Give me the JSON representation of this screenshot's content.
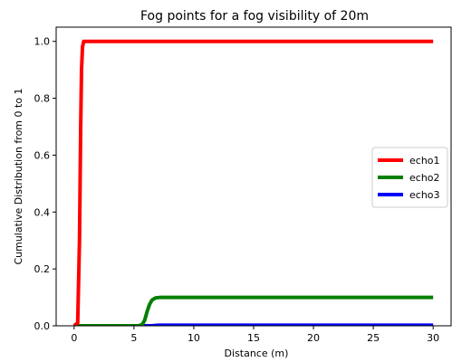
{
  "chart_data": {
    "type": "line",
    "title": "Fog points for a fog visibility of 20m",
    "xlabel": "Distance (m)",
    "ylabel": "Cumulative Distribution from 0 to 1",
    "xlim": [
      -1.5,
      31.5
    ],
    "ylim": [
      0.0,
      1.05
    ],
    "xticks": [
      0,
      5,
      10,
      15,
      20,
      25,
      30
    ],
    "xtick_labels": [
      "0",
      "5",
      "10",
      "15",
      "20",
      "25",
      "30"
    ],
    "yticks": [
      0.0,
      0.2,
      0.4,
      0.6,
      0.8,
      1.0
    ],
    "ytick_labels": [
      "0.0",
      "0.2",
      "0.4",
      "0.6",
      "0.8",
      "1.0"
    ],
    "grid": false,
    "legend_position": "center-right",
    "series": [
      {
        "name": "echo1",
        "color": "#ff0000",
        "x": [
          0,
          0.3,
          0.45,
          0.55,
          0.62,
          0.7,
          0.8,
          1.0,
          30
        ],
        "y": [
          0,
          0.01,
          0.3,
          0.7,
          0.9,
          0.98,
          1.0,
          1.0,
          1.0
        ]
      },
      {
        "name": "echo2",
        "color": "#008000",
        "x": [
          0,
          5.4,
          5.7,
          5.9,
          6.1,
          6.3,
          6.5,
          6.8,
          7.2,
          30
        ],
        "y": [
          0,
          0,
          0.005,
          0.02,
          0.05,
          0.075,
          0.09,
          0.098,
          0.1,
          0.1
        ]
      },
      {
        "name": "echo3",
        "color": "#0000ff",
        "x": [
          0,
          6.5,
          7.0,
          30
        ],
        "y": [
          0,
          0,
          0.002,
          0.002
        ]
      }
    ]
  }
}
